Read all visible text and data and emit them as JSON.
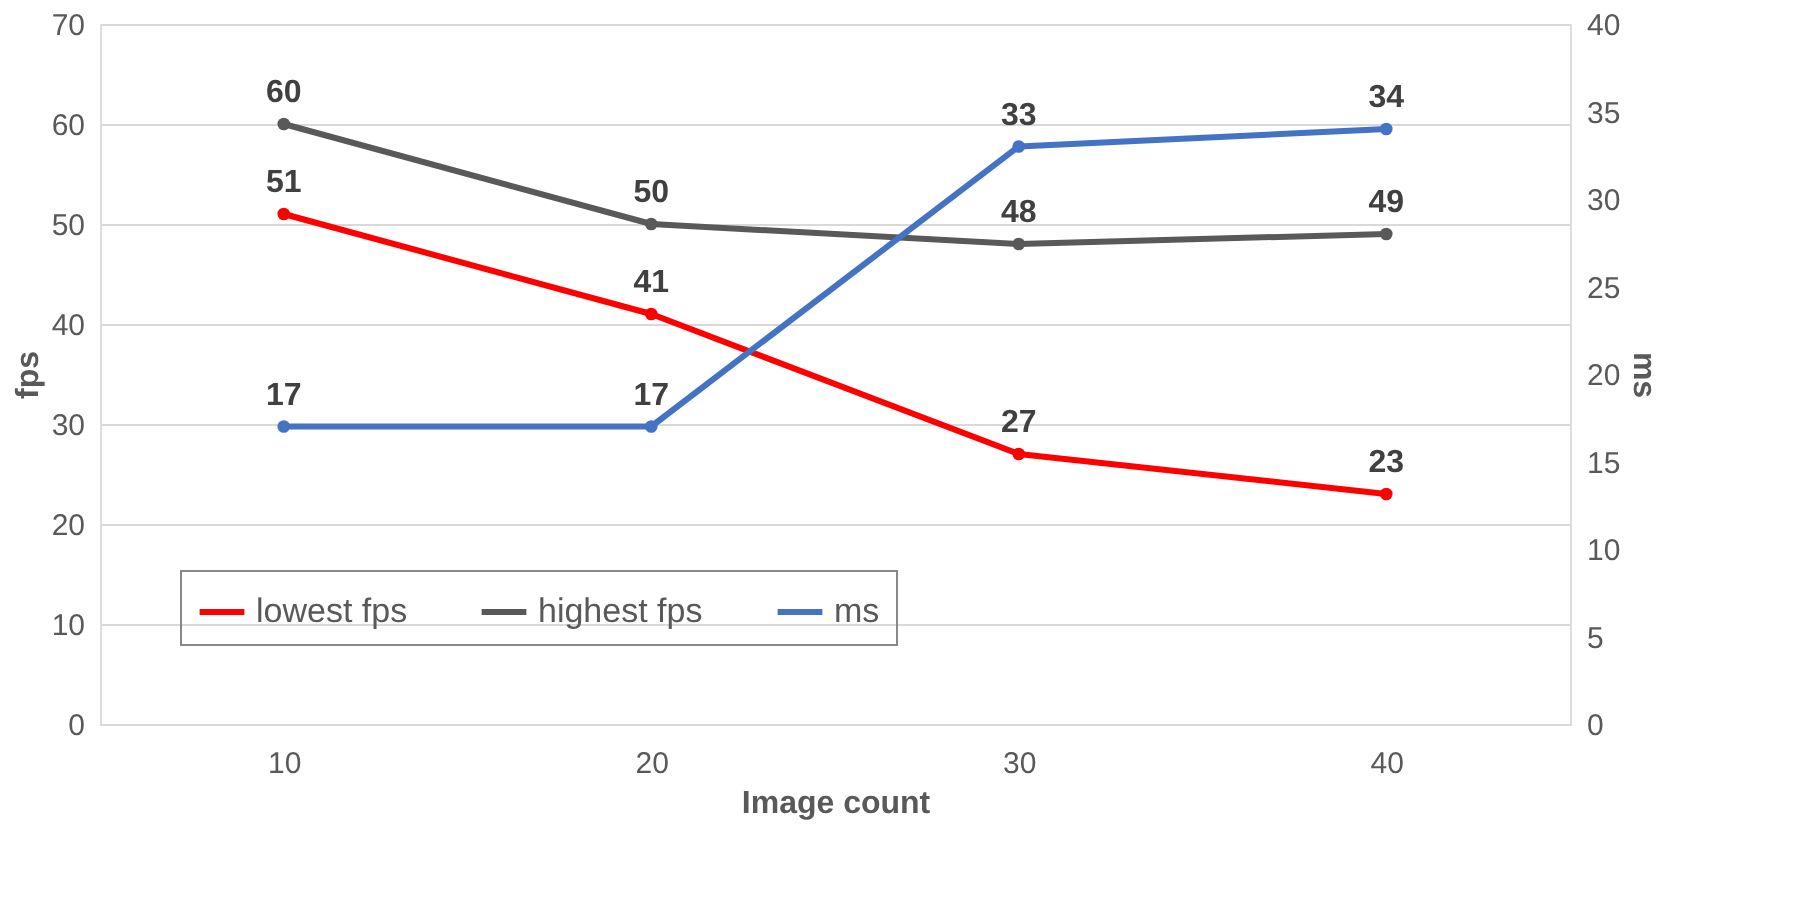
{
  "chart_data": {
    "type": "line",
    "xlabel": "Image count",
    "ylabel": "fps",
    "y2label": "ms",
    "categories": [
      "10",
      "20",
      "30",
      "40"
    ],
    "series": [
      {
        "name": "lowest fps",
        "color": "#ff0000",
        "values": [
          51,
          41,
          27,
          23
        ]
      },
      {
        "name": "highest fps",
        "color": "#595959",
        "values": [
          60,
          50,
          48,
          49
        ]
      },
      {
        "name": "ms",
        "color": "#4472c4",
        "values": [
          17,
          17,
          33,
          34
        ],
        "axis": "y2"
      }
    ],
    "ylim": [
      0,
      70
    ],
    "yticks": [
      0,
      10,
      20,
      30,
      40,
      50,
      60,
      70
    ],
    "y2lim": [
      0,
      40
    ],
    "y2ticks": [
      0,
      5,
      10,
      15,
      20,
      25,
      30,
      35,
      40
    ],
    "grid": "y",
    "legend": "bottom left",
    "marker": "circle",
    "line_style": "solid",
    "data_labels": true
  }
}
